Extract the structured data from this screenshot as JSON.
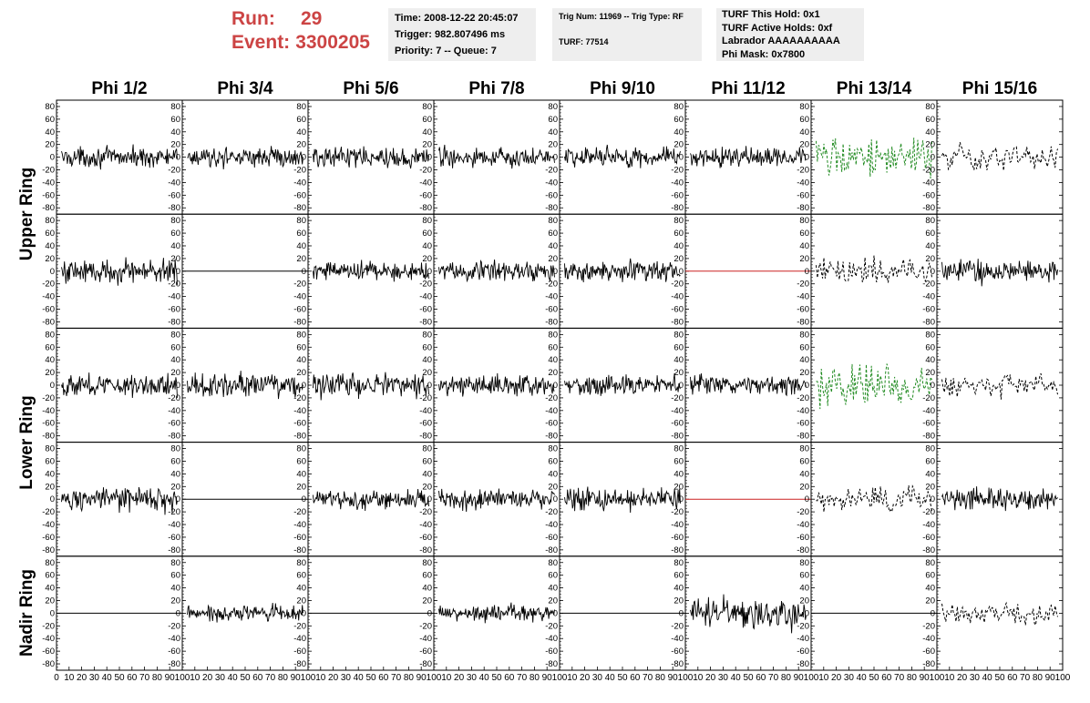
{
  "header": {
    "run_label": "Run:",
    "run_value": "29",
    "event_label": "Event:",
    "event_value": "3300205",
    "time_box": {
      "line1": "Time: 2008-12-22 20:45:07",
      "line2": "Trigger: 982.807496 ms",
      "line3": "Priority: 7 -- Queue: 7"
    },
    "trig_box": {
      "line1": "Trig Num: 11969 -- Trig Type: RF",
      "line2": "TURF: 77514"
    },
    "turf_box": {
      "line1": "TURF This Hold: 0x1",
      "line2": "TURF Active Holds: 0xf",
      "line3": "Labrador AAAAAAAAAA",
      "line4": "Phi Mask: 0x7800"
    }
  },
  "columns": [
    "Phi 1/2",
    "Phi 3/4",
    "Phi 5/6",
    "Phi 7/8",
    "Phi 9/10",
    "Phi 11/12",
    "Phi 13/14",
    "Phi 15/16"
  ],
  "ring_labels": [
    "Upper Ring",
    "Lower Ring",
    "Nadir Ring"
  ],
  "colors": {
    "trace": "#000000",
    "highlight": "#228b22",
    "flat_red": "#cc2222"
  },
  "chart_data": {
    "type": "line",
    "xlim": [
      0,
      100
    ],
    "ylim": [
      -90,
      90
    ],
    "x_ticks": [
      0,
      10,
      20,
      30,
      40,
      50,
      60,
      70,
      80,
      90,
      100
    ],
    "y_ticks": [
      -80,
      -60,
      -40,
      -20,
      0,
      20,
      40,
      60,
      80
    ],
    "grid": false,
    "legend": "none",
    "note_values": "waveform voltages are noisy; panels are described by style and amplitude (approximate peak value)",
    "panels": [
      [
        {
          "style": "solid",
          "color": "#000000",
          "amplitude": 22
        },
        {
          "style": "solid",
          "color": "#000000",
          "amplitude": 22
        },
        {
          "style": "solid",
          "color": "#000000",
          "amplitude": 24
        },
        {
          "style": "solid",
          "color": "#000000",
          "amplitude": 22
        },
        {
          "style": "solid",
          "color": "#000000",
          "amplitude": 24
        },
        {
          "style": "solid",
          "color": "#000000",
          "amplitude": 22
        },
        {
          "style": "dashed",
          "color": "#228b22",
          "amplitude": 50
        },
        {
          "style": "dashed",
          "color": "#000000",
          "amplitude": 30
        }
      ],
      [
        {
          "style": "solid",
          "color": "#000000",
          "amplitude": 28
        },
        {
          "style": "flat",
          "color": "#000000",
          "amplitude": 0
        },
        {
          "style": "solid",
          "color": "#000000",
          "amplitude": 22
        },
        {
          "style": "solid",
          "color": "#000000",
          "amplitude": 24
        },
        {
          "style": "solid",
          "color": "#000000",
          "amplitude": 24
        },
        {
          "style": "flat",
          "color": "#cc2222",
          "amplitude": 0
        },
        {
          "style": "dashed",
          "color": "#000000",
          "amplitude": 30
        },
        {
          "style": "solid",
          "color": "#000000",
          "amplitude": 26
        }
      ],
      [
        {
          "style": "solid",
          "color": "#000000",
          "amplitude": 26
        },
        {
          "style": "solid",
          "color": "#000000",
          "amplitude": 26
        },
        {
          "style": "solid",
          "color": "#000000",
          "amplitude": 28
        },
        {
          "style": "solid",
          "color": "#000000",
          "amplitude": 22
        },
        {
          "style": "solid",
          "color": "#000000",
          "amplitude": 22
        },
        {
          "style": "solid",
          "color": "#000000",
          "amplitude": 24
        },
        {
          "style": "dashed",
          "color": "#228b22",
          "amplitude": 50
        },
        {
          "style": "dashed",
          "color": "#000000",
          "amplitude": 26
        }
      ],
      [
        {
          "style": "solid",
          "color": "#000000",
          "amplitude": 26
        },
        {
          "style": "flat",
          "color": "#000000",
          "amplitude": 0
        },
        {
          "style": "solid",
          "color": "#000000",
          "amplitude": 22
        },
        {
          "style": "solid",
          "color": "#000000",
          "amplitude": 24
        },
        {
          "style": "solid",
          "color": "#000000",
          "amplitude": 26
        },
        {
          "style": "flat",
          "color": "#cc2222",
          "amplitude": 0
        },
        {
          "style": "dashed",
          "color": "#000000",
          "amplitude": 28
        },
        {
          "style": "solid",
          "color": "#000000",
          "amplitude": 24
        }
      ],
      [
        {
          "style": "flat",
          "color": "#000000",
          "amplitude": 0
        },
        {
          "style": "solid",
          "color": "#000000",
          "amplitude": 18
        },
        {
          "style": "flat",
          "color": "#000000",
          "amplitude": 0
        },
        {
          "style": "solid",
          "color": "#000000",
          "amplitude": 20
        },
        {
          "style": "flat",
          "color": "#000000",
          "amplitude": 0
        },
        {
          "style": "solid",
          "color": "#000000",
          "amplitude": 34
        },
        {
          "style": "flat",
          "color": "#000000",
          "amplitude": 0
        },
        {
          "style": "dashed",
          "color": "#000000",
          "amplitude": 24
        }
      ]
    ]
  }
}
